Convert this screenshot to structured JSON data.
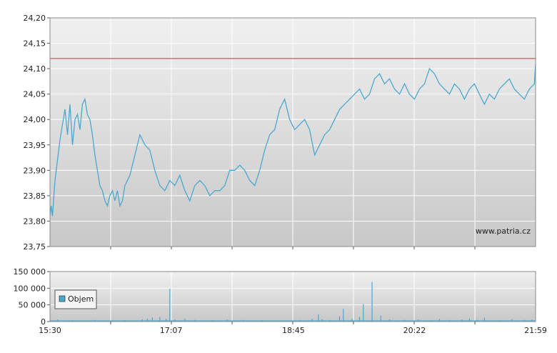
{
  "watermark": "www.patria.cz",
  "chart_data": [
    {
      "type": "line",
      "title": "",
      "xlabel": "",
      "ylabel": "",
      "ylim": [
        23.75,
        24.2
      ],
      "yticks": [
        "24,20",
        "24,15",
        "24,10",
        "24,05",
        "24,00",
        "23,95",
        "23,90",
        "23,85",
        "23,80",
        "23,75"
      ],
      "xlim": [
        "15:30",
        "21:59"
      ],
      "reference_line": 24.12,
      "grid": true,
      "colors": {
        "line": "#4aa8d0",
        "reference": "#cc3333",
        "bg_top": "#f0f0f0",
        "bg_bottom": "#cbcbcb"
      },
      "series": [
        {
          "x": [
            "15:30",
            "15:31",
            "15:32",
            "15:34",
            "15:36",
            "15:38",
            "15:40",
            "15:42",
            "15:44",
            "15:46",
            "15:48",
            "15:50",
            "15:52",
            "15:54",
            "15:56",
            "15:58",
            "16:00",
            "16:02",
            "16:04",
            "16:06",
            "16:08",
            "16:10",
            "16:12",
            "16:14",
            "16:16",
            "16:18",
            "16:20",
            "16:22",
            "16:24",
            "16:26",
            "16:28",
            "16:30",
            "16:34",
            "16:38",
            "16:42",
            "16:46",
            "16:50",
            "16:54",
            "16:58",
            "17:02",
            "17:06",
            "17:10",
            "17:14",
            "17:18",
            "17:22",
            "17:26",
            "17:30",
            "17:34",
            "17:38",
            "17:42",
            "17:46",
            "17:50",
            "17:54",
            "17:58",
            "18:02",
            "18:06",
            "18:10",
            "18:14",
            "18:18",
            "18:22",
            "18:26",
            "18:30",
            "18:34",
            "18:38",
            "18:42",
            "18:46",
            "18:50",
            "18:54",
            "18:58",
            "19:02",
            "19:06",
            "19:10",
            "19:14",
            "19:18",
            "19:22",
            "19:26",
            "19:30",
            "19:34",
            "19:38",
            "19:42",
            "19:46",
            "19:50",
            "19:54",
            "19:58",
            "20:02",
            "20:06",
            "20:10",
            "20:14",
            "20:18",
            "20:22",
            "20:26",
            "20:30",
            "20:34",
            "20:38",
            "20:42",
            "20:46",
            "20:50",
            "20:54",
            "20:58",
            "21:02",
            "21:06",
            "21:10",
            "21:14",
            "21:18",
            "21:22",
            "21:26",
            "21:30",
            "21:34",
            "21:38",
            "21:42",
            "21:46",
            "21:50",
            "21:54",
            "21:58",
            "21:59"
          ],
          "values": [
            23.81,
            23.83,
            23.81,
            23.88,
            23.92,
            23.96,
            23.99,
            24.02,
            23.97,
            24.03,
            23.95,
            24.0,
            24.01,
            23.98,
            24.03,
            24.04,
            24.01,
            24.0,
            23.97,
            23.93,
            23.9,
            23.87,
            23.86,
            23.84,
            23.83,
            23.85,
            23.86,
            23.84,
            23.86,
            23.83,
            23.84,
            23.87,
            23.89,
            23.93,
            23.97,
            23.95,
            23.94,
            23.9,
            23.87,
            23.86,
            23.88,
            23.87,
            23.89,
            23.86,
            23.84,
            23.87,
            23.88,
            23.87,
            23.85,
            23.86,
            23.86,
            23.87,
            23.9,
            23.9,
            23.91,
            23.9,
            23.88,
            23.87,
            23.9,
            23.94,
            23.97,
            23.98,
            24.02,
            24.04,
            24.0,
            23.98,
            23.99,
            24.0,
            23.98,
            23.93,
            23.95,
            23.97,
            23.98,
            24.0,
            24.02,
            24.03,
            24.04,
            24.05,
            24.06,
            24.04,
            24.05,
            24.08,
            24.09,
            24.07,
            24.08,
            24.06,
            24.05,
            24.07,
            24.05,
            24.04,
            24.06,
            24.07,
            24.1,
            24.09,
            24.07,
            24.06,
            24.05,
            24.07,
            24.06,
            24.04,
            24.06,
            24.07,
            24.05,
            24.03,
            24.05,
            24.04,
            24.06,
            24.07,
            24.08,
            24.06,
            24.05,
            24.04,
            24.06,
            24.07,
            24.11
          ]
        }
      ]
    },
    {
      "type": "bar",
      "title": "",
      "xlabel": "",
      "ylabel": "",
      "ylim": [
        0,
        150000
      ],
      "yticks": [
        "150 000",
        "100 000",
        "50 000",
        "0"
      ],
      "xticks": [
        "15:30",
        "17:07",
        "18:45",
        "20:22",
        "21:59"
      ],
      "grid": true,
      "legend": "top-left",
      "colors": {
        "bar": "#4aa8d0"
      },
      "series": [
        {
          "name": "Objem",
          "x": [
            "15:36",
            "15:48",
            "16:06",
            "16:20",
            "16:30",
            "16:35",
            "16:44",
            "16:48",
            "16:52",
            "16:58",
            "17:03",
            "17:06",
            "17:10",
            "17:18",
            "17:26",
            "17:40",
            "17:52",
            "18:05",
            "18:20",
            "18:35",
            "18:50",
            "19:00",
            "19:05",
            "19:08",
            "19:14",
            "19:22",
            "19:25",
            "19:32",
            "19:38",
            "19:41",
            "19:48",
            "19:55",
            "20:02",
            "20:14",
            "20:25",
            "20:35",
            "20:42",
            "20:50",
            "21:00",
            "21:06",
            "21:12",
            "21:18",
            "21:30",
            "21:40",
            "21:50",
            "21:56"
          ],
          "values": [
            6000,
            4000,
            5000,
            3000,
            4000,
            3000,
            7000,
            9000,
            12000,
            14000,
            8000,
            98000,
            6000,
            9000,
            5000,
            4000,
            6000,
            5000,
            4000,
            3000,
            5000,
            8000,
            22000,
            7000,
            5000,
            16000,
            38000,
            9000,
            14000,
            52000,
            119000,
            18000,
            7000,
            5000,
            6000,
            4000,
            8000,
            5000,
            6000,
            9000,
            5000,
            12000,
            4000,
            7000,
            5000,
            6000
          ]
        }
      ]
    }
  ]
}
